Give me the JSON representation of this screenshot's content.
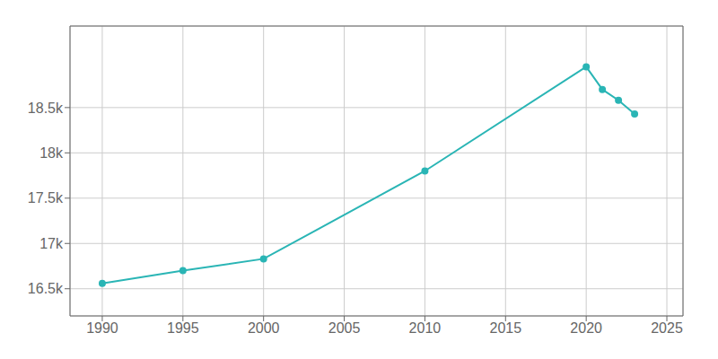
{
  "chart_data": {
    "type": "line",
    "x": [
      1990,
      1995,
      2000,
      2010,
      2020,
      2021,
      2022,
      2023
    ],
    "values": [
      16560,
      16700,
      16830,
      17800,
      18950,
      18700,
      18580,
      18430
    ],
    "color": "#2ab5b5",
    "marker": "o",
    "xlim": [
      1988,
      2026
    ],
    "xticks": [
      1990,
      1995,
      2000,
      2005,
      2010,
      2015,
      2020,
      2025
    ],
    "ylim": [
      16200,
      19400
    ],
    "yticks": [
      {
        "value": 16500,
        "label": "16.5k"
      },
      {
        "value": 17000,
        "label": "17k"
      },
      {
        "value": 17500,
        "label": "17.5k"
      },
      {
        "value": 18000,
        "label": "18k"
      },
      {
        "value": 18500,
        "label": "18.5k"
      }
    ],
    "grid": true
  }
}
